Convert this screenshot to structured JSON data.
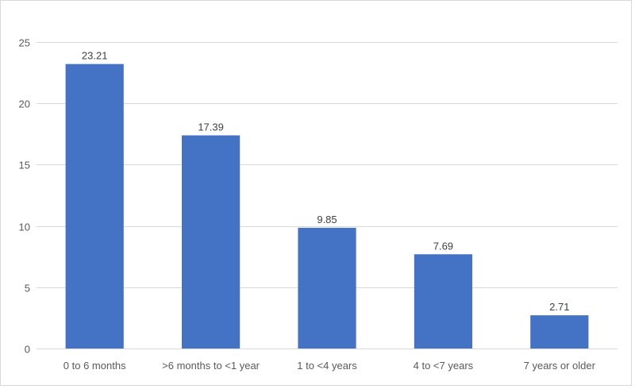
{
  "chart_data": {
    "type": "bar",
    "title": "",
    "xlabel": "",
    "ylabel": "",
    "categories": [
      "0 to 6 months",
      ">6 months to <1 year",
      "1 to <4 years",
      "4 to <7 years",
      "7 years or older"
    ],
    "values": [
      23.21,
      17.39,
      9.85,
      7.69,
      2.71
    ],
    "data_labels": [
      "23.21",
      "17.39",
      "9.85",
      "7.69",
      "2.71"
    ],
    "ylim": [
      0,
      25
    ],
    "yticks": [
      0,
      5,
      10,
      15,
      20,
      25
    ],
    "grid": true,
    "legend": "none",
    "bar_color": "#4472c4",
    "grid_color": "#d9d9d9"
  }
}
